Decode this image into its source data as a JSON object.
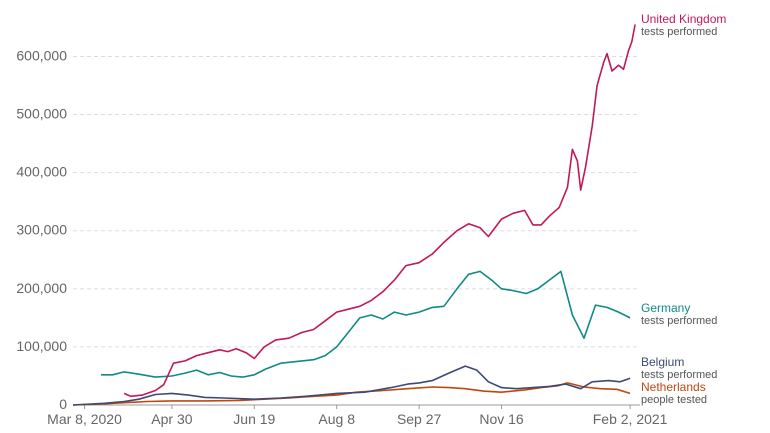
{
  "chart_data": {
    "type": "line",
    "title": "",
    "xlabel": "",
    "ylabel": "",
    "x_tick_labels": [
      "Mar 8, 2020",
      "Apr 30",
      "Jun 19",
      "Aug 8",
      "Sep 27",
      "Nov 16",
      "Feb 2, 2021"
    ],
    "x_tick_dates": [
      "2020-03-08",
      "2020-04-30",
      "2020-06-19",
      "2020-08-08",
      "2020-09-27",
      "2020-11-16",
      "2021-02-02"
    ],
    "xlim": [
      "2020-03-01",
      "2021-02-08"
    ],
    "y_ticks": [
      0,
      100000,
      200000,
      300000,
      400000,
      500000,
      600000
    ],
    "y_tick_labels": [
      "0",
      "100,000",
      "200,000",
      "300,000",
      "400,000",
      "500,000",
      "600,000"
    ],
    "ylim": [
      0,
      680000
    ],
    "grid": "horizontal-dashed",
    "legend": "inline-right",
    "series": [
      {
        "name": "United Kingdom",
        "sublabel": "tests performed",
        "color": "#c2185b",
        "points": [
          [
            "2020-04-01",
            20000
          ],
          [
            "2020-04-05",
            15000
          ],
          [
            "2020-04-12",
            17000
          ],
          [
            "2020-04-20",
            25000
          ],
          [
            "2020-04-25",
            35000
          ],
          [
            "2020-05-01",
            72000
          ],
          [
            "2020-05-08",
            76000
          ],
          [
            "2020-05-15",
            85000
          ],
          [
            "2020-05-22",
            90000
          ],
          [
            "2020-05-29",
            95000
          ],
          [
            "2020-06-03",
            92000
          ],
          [
            "2020-06-08",
            97000
          ],
          [
            "2020-06-14",
            90000
          ],
          [
            "2020-06-19",
            80000
          ],
          [
            "2020-06-25",
            100000
          ],
          [
            "2020-07-02",
            112000
          ],
          [
            "2020-07-10",
            115000
          ],
          [
            "2020-07-18",
            125000
          ],
          [
            "2020-07-25",
            130000
          ],
          [
            "2020-08-01",
            145000
          ],
          [
            "2020-08-08",
            160000
          ],
          [
            "2020-08-15",
            165000
          ],
          [
            "2020-08-22",
            170000
          ],
          [
            "2020-08-29",
            180000
          ],
          [
            "2020-09-05",
            195000
          ],
          [
            "2020-09-12",
            215000
          ],
          [
            "2020-09-19",
            240000
          ],
          [
            "2020-09-27",
            245000
          ],
          [
            "2020-10-05",
            260000
          ],
          [
            "2020-10-12",
            280000
          ],
          [
            "2020-10-20",
            300000
          ],
          [
            "2020-10-27",
            312000
          ],
          [
            "2020-11-03",
            305000
          ],
          [
            "2020-11-08",
            290000
          ],
          [
            "2020-11-16",
            320000
          ],
          [
            "2020-11-23",
            330000
          ],
          [
            "2020-11-30",
            335000
          ],
          [
            "2020-12-05",
            310000
          ],
          [
            "2020-12-10",
            310000
          ],
          [
            "2020-12-15",
            325000
          ],
          [
            "2020-12-21",
            340000
          ],
          [
            "2020-12-26",
            375000
          ],
          [
            "2020-12-29",
            440000
          ],
          [
            "2021-01-01",
            420000
          ],
          [
            "2021-01-03",
            370000
          ],
          [
            "2021-01-06",
            410000
          ],
          [
            "2021-01-10",
            480000
          ],
          [
            "2021-01-13",
            550000
          ],
          [
            "2021-01-17",
            590000
          ],
          [
            "2021-01-19",
            605000
          ],
          [
            "2021-01-22",
            575000
          ],
          [
            "2021-01-26",
            585000
          ],
          [
            "2021-01-29",
            578000
          ],
          [
            "2021-02-01",
            610000
          ],
          [
            "2021-02-03",
            625000
          ],
          [
            "2021-02-05",
            655000
          ]
        ]
      },
      {
        "name": "Germany",
        "sublabel": "tests performed",
        "color": "#0f8a86",
        "points": [
          [
            "2020-03-18",
            52000
          ],
          [
            "2020-03-25",
            52000
          ],
          [
            "2020-04-01",
            57000
          ],
          [
            "2020-04-10",
            53000
          ],
          [
            "2020-04-20",
            48000
          ],
          [
            "2020-04-30",
            50000
          ],
          [
            "2020-05-08",
            55000
          ],
          [
            "2020-05-15",
            60000
          ],
          [
            "2020-05-22",
            52000
          ],
          [
            "2020-05-29",
            56000
          ],
          [
            "2020-06-05",
            50000
          ],
          [
            "2020-06-12",
            48000
          ],
          [
            "2020-06-19",
            52000
          ],
          [
            "2020-06-26",
            62000
          ],
          [
            "2020-07-05",
            72000
          ],
          [
            "2020-07-15",
            75000
          ],
          [
            "2020-07-25",
            78000
          ],
          [
            "2020-08-01",
            85000
          ],
          [
            "2020-08-08",
            100000
          ],
          [
            "2020-08-15",
            125000
          ],
          [
            "2020-08-22",
            150000
          ],
          [
            "2020-08-29",
            155000
          ],
          [
            "2020-09-05",
            148000
          ],
          [
            "2020-09-12",
            160000
          ],
          [
            "2020-09-19",
            155000
          ],
          [
            "2020-09-27",
            160000
          ],
          [
            "2020-10-05",
            168000
          ],
          [
            "2020-10-12",
            170000
          ],
          [
            "2020-10-20",
            200000
          ],
          [
            "2020-10-27",
            225000
          ],
          [
            "2020-11-03",
            230000
          ],
          [
            "2020-11-10",
            215000
          ],
          [
            "2020-11-16",
            200000
          ],
          [
            "2020-11-23",
            197000
          ],
          [
            "2020-12-01",
            192000
          ],
          [
            "2020-12-08",
            200000
          ],
          [
            "2020-12-15",
            215000
          ],
          [
            "2020-12-22",
            230000
          ],
          [
            "2020-12-29",
            155000
          ],
          [
            "2021-01-05",
            115000
          ],
          [
            "2021-01-12",
            172000
          ],
          [
            "2021-01-19",
            168000
          ],
          [
            "2021-01-26",
            160000
          ],
          [
            "2021-02-02",
            150000
          ]
        ]
      },
      {
        "name": "Belgium",
        "sublabel": "tests performed",
        "color": "#3d4a73",
        "points": [
          [
            "2020-03-01",
            0
          ],
          [
            "2020-03-20",
            3000
          ],
          [
            "2020-04-01",
            6000
          ],
          [
            "2020-04-10",
            10000
          ],
          [
            "2020-04-20",
            18000
          ],
          [
            "2020-04-30",
            20000
          ],
          [
            "2020-05-10",
            17000
          ],
          [
            "2020-05-20",
            13000
          ],
          [
            "2020-06-01",
            12000
          ],
          [
            "2020-06-19",
            10000
          ],
          [
            "2020-07-05",
            12000
          ],
          [
            "2020-07-20",
            15000
          ],
          [
            "2020-08-01",
            18000
          ],
          [
            "2020-08-08",
            20000
          ],
          [
            "2020-08-25",
            22000
          ],
          [
            "2020-09-10",
            30000
          ],
          [
            "2020-09-20",
            36000
          ],
          [
            "2020-09-27",
            38000
          ],
          [
            "2020-10-05",
            42000
          ],
          [
            "2020-10-15",
            55000
          ],
          [
            "2020-10-25",
            67000
          ],
          [
            "2020-11-01",
            60000
          ],
          [
            "2020-11-08",
            40000
          ],
          [
            "2020-11-16",
            30000
          ],
          [
            "2020-11-25",
            28000
          ],
          [
            "2020-12-05",
            30000
          ],
          [
            "2020-12-15",
            32000
          ],
          [
            "2020-12-25",
            36000
          ],
          [
            "2021-01-03",
            28000
          ],
          [
            "2021-01-10",
            40000
          ],
          [
            "2021-01-20",
            42000
          ],
          [
            "2021-01-27",
            40000
          ],
          [
            "2021-02-02",
            46000
          ]
        ]
      },
      {
        "name": "Netherlands",
        "sublabel": "people tested",
        "color": "#c0470f",
        "points": [
          [
            "2020-03-01",
            0
          ],
          [
            "2020-03-20",
            2000
          ],
          [
            "2020-04-01",
            4000
          ],
          [
            "2020-04-15",
            6000
          ],
          [
            "2020-04-30",
            7000
          ],
          [
            "2020-05-20",
            7000
          ],
          [
            "2020-06-10",
            8000
          ],
          [
            "2020-06-25",
            10000
          ],
          [
            "2020-07-10",
            12000
          ],
          [
            "2020-07-25",
            15000
          ],
          [
            "2020-08-08",
            17000
          ],
          [
            "2020-08-20",
            22000
          ],
          [
            "2020-09-05",
            25000
          ],
          [
            "2020-09-20",
            28000
          ],
          [
            "2020-10-05",
            31000
          ],
          [
            "2020-10-15",
            30000
          ],
          [
            "2020-10-25",
            28000
          ],
          [
            "2020-11-05",
            24000
          ],
          [
            "2020-11-16",
            22000
          ],
          [
            "2020-11-30",
            26000
          ],
          [
            "2020-12-10",
            30000
          ],
          [
            "2020-12-20",
            33000
          ],
          [
            "2020-12-26",
            38000
          ],
          [
            "2021-01-05",
            31000
          ],
          [
            "2021-01-15",
            28000
          ],
          [
            "2021-01-25",
            27000
          ],
          [
            "2021-02-02",
            20000
          ]
        ]
      }
    ]
  }
}
